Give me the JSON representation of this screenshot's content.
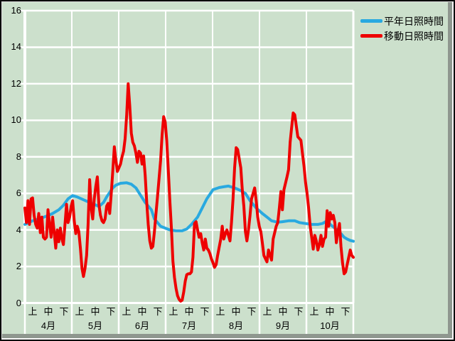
{
  "window": {
    "background_color": "#cce0cc",
    "frame_shadow_color": "#8f978f"
  },
  "chart_data": {
    "type": "line",
    "title": "",
    "xlabel": "",
    "ylabel": "",
    "ylim": [
      0,
      16
    ],
    "yticks": [
      0,
      2,
      4,
      6,
      8,
      10,
      12,
      14,
      16
    ],
    "grid": true,
    "gridline_color": "#ffffff",
    "legend_position": "top-right",
    "x_domain_days": [
      0,
      213
    ],
    "x_axis": {
      "months": [
        {
          "label": "4月",
          "periods": [
            "上",
            "中",
            "下"
          ]
        },
        {
          "label": "5月",
          "periods": [
            "上",
            "中",
            "下"
          ]
        },
        {
          "label": "6月",
          "periods": [
            "上",
            "中",
            "下"
          ]
        },
        {
          "label": "7月",
          "periods": [
            "上",
            "中",
            "下"
          ]
        },
        {
          "label": "8月",
          "periods": [
            "上",
            "中",
            "下"
          ]
        },
        {
          "label": "9月",
          "periods": [
            "上",
            "中",
            "下"
          ]
        },
        {
          "label": "10月",
          "periods": [
            "上",
            "中",
            "下"
          ]
        }
      ]
    },
    "series": [
      {
        "name": "平年日照時間",
        "color": "#29a9e0",
        "width": 4,
        "points": [
          [
            0,
            4.3
          ],
          [
            5,
            4.5
          ],
          [
            9,
            4.6
          ],
          [
            14,
            4.75
          ],
          [
            18,
            4.9
          ],
          [
            22,
            5.1
          ],
          [
            25,
            5.35
          ],
          [
            28,
            5.7
          ],
          [
            31,
            5.88
          ],
          [
            34,
            5.8
          ],
          [
            38,
            5.65
          ],
          [
            42,
            5.5
          ],
          [
            45,
            5.4
          ],
          [
            48,
            5.28
          ],
          [
            51,
            5.5
          ],
          [
            53,
            5.8
          ],
          [
            55,
            6.05
          ],
          [
            57,
            6.3
          ],
          [
            59,
            6.45
          ],
          [
            62,
            6.55
          ],
          [
            66,
            6.58
          ],
          [
            69,
            6.5
          ],
          [
            72,
            6.3
          ],
          [
            75,
            5.9
          ],
          [
            78,
            5.5
          ],
          [
            82,
            5.1
          ],
          [
            84,
            4.6
          ],
          [
            88,
            4.2
          ],
          [
            91,
            4.1
          ],
          [
            94,
            4.0
          ],
          [
            98,
            3.95
          ],
          [
            102,
            3.95
          ],
          [
            105,
            4.05
          ],
          [
            108,
            4.3
          ],
          [
            112,
            4.7
          ],
          [
            115,
            5.2
          ],
          [
            118,
            5.7
          ],
          [
            122,
            6.2
          ],
          [
            126,
            6.32
          ],
          [
            129,
            6.36
          ],
          [
            132,
            6.4
          ],
          [
            136,
            6.3
          ],
          [
            140,
            6.15
          ],
          [
            143,
            6.0
          ],
          [
            146,
            5.6
          ],
          [
            150,
            5.2
          ],
          [
            154,
            4.9
          ],
          [
            157,
            4.7
          ],
          [
            160,
            4.5
          ],
          [
            164,
            4.42
          ],
          [
            167,
            4.45
          ],
          [
            171,
            4.5
          ],
          [
            175,
            4.5
          ],
          [
            178,
            4.4
          ],
          [
            182,
            4.35
          ],
          [
            186,
            4.3
          ],
          [
            190,
            4.3
          ],
          [
            193,
            4.35
          ],
          [
            196,
            4.5
          ],
          [
            198,
            4.3
          ],
          [
            201,
            4.1
          ],
          [
            203,
            3.95
          ],
          [
            205,
            3.8
          ],
          [
            207,
            3.6
          ],
          [
            209,
            3.5
          ],
          [
            211,
            3.42
          ],
          [
            213,
            3.38
          ]
        ]
      },
      {
        "name": "移動日照時間",
        "color": "#ee0000",
        "width": 4,
        "points": [
          [
            0,
            5.2
          ],
          [
            1,
            4.4
          ],
          [
            2,
            5.6
          ],
          [
            3,
            4.3
          ],
          [
            4,
            5.7
          ],
          [
            5,
            5.75
          ],
          [
            6,
            4.8
          ],
          [
            7,
            4.3
          ],
          [
            8,
            4.1
          ],
          [
            9,
            4.9
          ],
          [
            10,
            3.85
          ],
          [
            11,
            4.7
          ],
          [
            12,
            3.6
          ],
          [
            13,
            3.5
          ],
          [
            14,
            3.6
          ],
          [
            15,
            5.1
          ],
          [
            16,
            4.3
          ],
          [
            17,
            3.6
          ],
          [
            18,
            4.7
          ],
          [
            19,
            3.9
          ],
          [
            20,
            3.0
          ],
          [
            21,
            4.0
          ],
          [
            22,
            3.35
          ],
          [
            23,
            4.1
          ],
          [
            24,
            3.5
          ],
          [
            25,
            3.2
          ],
          [
            26,
            4.3
          ],
          [
            27,
            5.4
          ],
          [
            28,
            4.4
          ],
          [
            29,
            4.7
          ],
          [
            30,
            5.3
          ],
          [
            31,
            5.6
          ],
          [
            32,
            4.5
          ],
          [
            33,
            3.8
          ],
          [
            34,
            4.2
          ],
          [
            35,
            3.9
          ],
          [
            36,
            3.0
          ],
          [
            37,
            1.9
          ],
          [
            38,
            1.45
          ],
          [
            39,
            1.9
          ],
          [
            40,
            2.6
          ],
          [
            41,
            4.3
          ],
          [
            42,
            6.75
          ],
          [
            43,
            5.2
          ],
          [
            44,
            4.6
          ],
          [
            45,
            5.7
          ],
          [
            46,
            6.4
          ],
          [
            47,
            6.9
          ],
          [
            48,
            5.4
          ],
          [
            49,
            4.8
          ],
          [
            50,
            4.5
          ],
          [
            51,
            4.4
          ],
          [
            52,
            4.6
          ],
          [
            53,
            5.3
          ],
          [
            54,
            5.45
          ],
          [
            55,
            4.9
          ],
          [
            56,
            6.0
          ],
          [
            57,
            7.2
          ],
          [
            58,
            8.55
          ],
          [
            59,
            7.8
          ],
          [
            60,
            7.2
          ],
          [
            61,
            7.4
          ],
          [
            62,
            7.6
          ],
          [
            63,
            8.0
          ],
          [
            64,
            8.3
          ],
          [
            65,
            9.0
          ],
          [
            66,
            10.3
          ],
          [
            67,
            12.0
          ],
          [
            68,
            10.8
          ],
          [
            69,
            9.3
          ],
          [
            70,
            8.8
          ],
          [
            71,
            8.6
          ],
          [
            72,
            8.2
          ],
          [
            73,
            7.7
          ],
          [
            74,
            8.3
          ],
          [
            75,
            8.2
          ],
          [
            76,
            7.6
          ],
          [
            77,
            8.05
          ],
          [
            78,
            7.0
          ],
          [
            79,
            5.5
          ],
          [
            80,
            4.3
          ],
          [
            81,
            3.4
          ],
          [
            82,
            3.0
          ],
          [
            83,
            3.1
          ],
          [
            84,
            3.9
          ],
          [
            85,
            4.9
          ],
          [
            86,
            5.8
          ],
          [
            87,
            6.8
          ],
          [
            88,
            7.8
          ],
          [
            89,
            9.2
          ],
          [
            90,
            10.2
          ],
          [
            91,
            9.9
          ],
          [
            92,
            8.9
          ],
          [
            93,
            7.3
          ],
          [
            94,
            5.6
          ],
          [
            95,
            4.1
          ],
          [
            96,
            2.3
          ],
          [
            97,
            1.4
          ],
          [
            98,
            0.8
          ],
          [
            99,
            0.4
          ],
          [
            100,
            0.2
          ],
          [
            101,
            0.1
          ],
          [
            102,
            0.15
          ],
          [
            103,
            0.6
          ],
          [
            104,
            1.2
          ],
          [
            105,
            1.55
          ],
          [
            106,
            1.6
          ],
          [
            107,
            1.6
          ],
          [
            108,
            1.7
          ],
          [
            109,
            2.5
          ],
          [
            110,
            4.35
          ],
          [
            111,
            4.45
          ],
          [
            112,
            4.0
          ],
          [
            113,
            3.6
          ],
          [
            114,
            3.8
          ],
          [
            115,
            3.3
          ],
          [
            116,
            2.9
          ],
          [
            117,
            3.5
          ],
          [
            118,
            3.0
          ],
          [
            119,
            2.9
          ],
          [
            120,
            2.7
          ],
          [
            121,
            2.4
          ],
          [
            122,
            2.2
          ],
          [
            123,
            1.95
          ],
          [
            124,
            2.1
          ],
          [
            125,
            2.6
          ],
          [
            127,
            3.5
          ],
          [
            128,
            4.2
          ],
          [
            129,
            3.5
          ],
          [
            130,
            3.8
          ],
          [
            131,
            4.0
          ],
          [
            133,
            3.4
          ],
          [
            134,
            4.4
          ],
          [
            135,
            5.7
          ],
          [
            136,
            7.4
          ],
          [
            137,
            8.5
          ],
          [
            138,
            8.4
          ],
          [
            140,
            7.4
          ],
          [
            141,
            6.2
          ],
          [
            142,
            5.3
          ],
          [
            143,
            3.9
          ],
          [
            144,
            3.4
          ],
          [
            145,
            4.0
          ],
          [
            146,
            4.8
          ],
          [
            147,
            5.7
          ],
          [
            149,
            6.3
          ],
          [
            150,
            5.6
          ],
          [
            151,
            4.7
          ],
          [
            152,
            4.2
          ],
          [
            153,
            3.9
          ],
          [
            154,
            3.3
          ],
          [
            155,
            2.6
          ],
          [
            157,
            2.25
          ],
          [
            158,
            2.9
          ],
          [
            159,
            2.6
          ],
          [
            160,
            2.35
          ],
          [
            161,
            3.5
          ],
          [
            163,
            4.2
          ],
          [
            164,
            4.4
          ],
          [
            165,
            5.2
          ],
          [
            166,
            6.1
          ],
          [
            167,
            5.1
          ],
          [
            168,
            6.2
          ],
          [
            170,
            6.9
          ],
          [
            171,
            7.3
          ],
          [
            172,
            8.8
          ],
          [
            173,
            9.6
          ],
          [
            174,
            10.4
          ],
          [
            175,
            10.3
          ],
          [
            177,
            9.1
          ],
          [
            178,
            9.0
          ],
          [
            179,
            8.9
          ],
          [
            180,
            8.2
          ],
          [
            181,
            7.5
          ],
          [
            182,
            6.6
          ],
          [
            183,
            6.0
          ],
          [
            184,
            5.2
          ],
          [
            185,
            4.2
          ],
          [
            186,
            3.6
          ],
          [
            187,
            2.95
          ],
          [
            188,
            3.7
          ],
          [
            189,
            3.4
          ],
          [
            190,
            2.9
          ],
          [
            191,
            3.2
          ],
          [
            192,
            3.7
          ],
          [
            193,
            3.1
          ],
          [
            194,
            3.5
          ],
          [
            195,
            3.6
          ],
          [
            196,
            5.05
          ],
          [
            197,
            4.2
          ],
          [
            198,
            4.95
          ],
          [
            199,
            4.6
          ],
          [
            200,
            4.8
          ],
          [
            201,
            4.4
          ],
          [
            202,
            3.3
          ],
          [
            203,
            3.9
          ],
          [
            204,
            4.35
          ],
          [
            205,
            3.1
          ],
          [
            206,
            2.2
          ],
          [
            207,
            1.6
          ],
          [
            208,
            1.7
          ],
          [
            209,
            2.1
          ],
          [
            210,
            2.5
          ],
          [
            211,
            2.9
          ],
          [
            212,
            2.6
          ],
          [
            213,
            2.5
          ]
        ]
      }
    ]
  }
}
